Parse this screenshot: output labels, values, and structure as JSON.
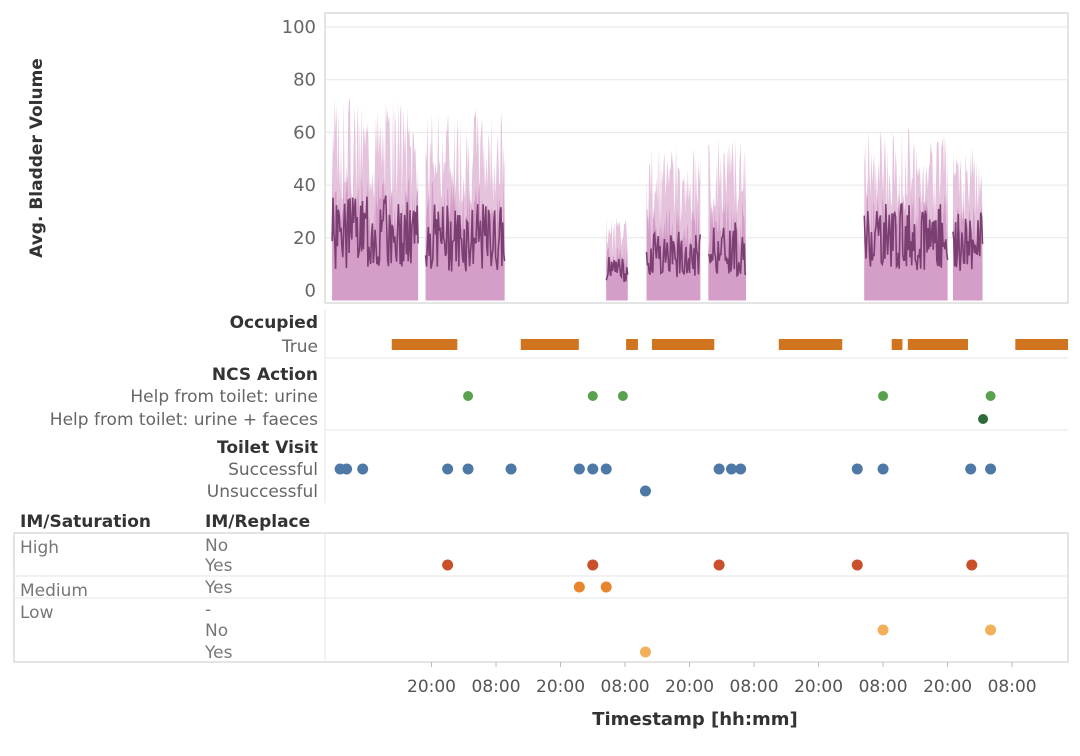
{
  "colors": {
    "bladder_light": "#e3bcd9",
    "bladder_mid": "#cf95c4",
    "bladder_line": "#7b3f72",
    "occupied": "#d0741f",
    "ncs_urine": "#59a14f",
    "ncs_urine_faeces": "#2f6b3a",
    "toilet": "#4e79a7",
    "im_high": "#c9502a",
    "im_medium": "#e8862e",
    "im_low": "#f2b05a",
    "grid": "#e6e6e6",
    "border": "#c8c8c8"
  },
  "chart_data": {
    "type": "composite",
    "x_axis": {
      "label": "Timestamp [hh:mm]",
      "tick_labels": [
        "20:00",
        "08:00",
        "20:00",
        "08:00",
        "20:00",
        "08:00",
        "20:00",
        "08:00",
        "20:00",
        "08:00"
      ],
      "tick_hours": [
        20,
        32,
        44,
        56,
        68,
        80,
        92,
        104,
        116,
        128
      ],
      "range_hours": [
        0,
        138.4
      ]
    },
    "bladder_volume": {
      "type": "area",
      "ylabel": "Avg. Bladder Volume",
      "yticks": [
        0,
        20,
        40,
        60,
        80,
        100
      ],
      "ylim": [
        -4,
        100
      ],
      "segments": [
        {
          "start": 1.5,
          "end": 17.5,
          "avg": 22,
          "max": 75,
          "noise_seed": 3
        },
        {
          "start": 18.9,
          "end": 33.6,
          "avg": 20,
          "max": 70,
          "noise_seed": 7
        },
        {
          "start": 52.5,
          "end": 56.5,
          "avg": 8,
          "max": 30,
          "noise_seed": 11
        },
        {
          "start": 60.0,
          "end": 70.0,
          "avg": 14,
          "max": 55,
          "noise_seed": 13
        },
        {
          "start": 71.5,
          "end": 78.5,
          "avg": 16,
          "max": 58,
          "noise_seed": 17
        },
        {
          "start": 100.5,
          "end": 116.0,
          "avg": 20,
          "max": 62,
          "noise_seed": 19
        },
        {
          "start": 117.0,
          "end": 122.5,
          "avg": 18,
          "max": 55,
          "noise_seed": 23
        }
      ]
    },
    "occupied": {
      "title": "Occupied",
      "category": "True",
      "intervals": [
        [
          12.6,
          24.8
        ],
        [
          36.6,
          47.4
        ],
        [
          56.2,
          58.4
        ],
        [
          61.0,
          72.6
        ],
        [
          84.6,
          96.4
        ],
        [
          105.6,
          107.6
        ],
        [
          108.6,
          119.8
        ],
        [
          128.6,
          138.4
        ]
      ]
    },
    "ncs_action": {
      "title": "NCS Action",
      "categories": [
        "Help from toilet: urine",
        "Help from toilet: urine + faeces"
      ],
      "points": [
        {
          "category": "Help from toilet: urine",
          "x": 26.8
        },
        {
          "category": "Help from toilet: urine",
          "x": 50.0
        },
        {
          "category": "Help from toilet: urine",
          "x": 55.6
        },
        {
          "category": "Help from toilet: urine",
          "x": 104.0
        },
        {
          "category": "Help from toilet: urine",
          "x": 124.0
        },
        {
          "category": "Help from toilet: urine + faeces",
          "x": 122.6
        }
      ]
    },
    "toilet_visit": {
      "title": "Toilet Visit",
      "categories": [
        "Successful",
        "Unsuccessful"
      ],
      "points": [
        {
          "category": "Successful",
          "x": 3.0
        },
        {
          "category": "Successful",
          "x": 4.2
        },
        {
          "category": "Successful",
          "x": 7.2
        },
        {
          "category": "Successful",
          "x": 23.0
        },
        {
          "category": "Successful",
          "x": 26.8
        },
        {
          "category": "Successful",
          "x": 34.8
        },
        {
          "category": "Successful",
          "x": 47.5
        },
        {
          "category": "Successful",
          "x": 50.0
        },
        {
          "category": "Successful",
          "x": 52.5
        },
        {
          "category": "Successful",
          "x": 73.5
        },
        {
          "category": "Successful",
          "x": 75.8
        },
        {
          "category": "Successful",
          "x": 77.5
        },
        {
          "category": "Successful",
          "x": 99.2
        },
        {
          "category": "Successful",
          "x": 104.0
        },
        {
          "category": "Successful",
          "x": 120.3
        },
        {
          "category": "Successful",
          "x": 124.0
        },
        {
          "category": "Unsuccessful",
          "x": 59.8
        }
      ]
    },
    "im": {
      "saturation_header": "IM/Saturation",
      "replace_header": "IM/Replace",
      "groups": [
        {
          "saturation": "High",
          "rows": [
            "No",
            "Yes"
          ]
        },
        {
          "saturation": "Medium",
          "rows": [
            "Yes"
          ]
        },
        {
          "saturation": "Low",
          "rows": [
            "-",
            "No",
            "Yes"
          ]
        }
      ],
      "points": [
        {
          "saturation": "High",
          "replace": "Yes",
          "x": 23.0
        },
        {
          "saturation": "High",
          "replace": "Yes",
          "x": 50.0
        },
        {
          "saturation": "High",
          "replace": "Yes",
          "x": 73.5
        },
        {
          "saturation": "High",
          "replace": "Yes",
          "x": 99.2
        },
        {
          "saturation": "High",
          "replace": "Yes",
          "x": 120.5
        },
        {
          "saturation": "Medium",
          "replace": "Yes",
          "x": 47.5
        },
        {
          "saturation": "Medium",
          "replace": "Yes",
          "x": 52.5
        },
        {
          "saturation": "Low",
          "replace": "No",
          "x": 104.0
        },
        {
          "saturation": "Low",
          "replace": "No",
          "x": 124.0
        },
        {
          "saturation": "Low",
          "replace": "Yes",
          "x": 59.8
        }
      ]
    }
  }
}
